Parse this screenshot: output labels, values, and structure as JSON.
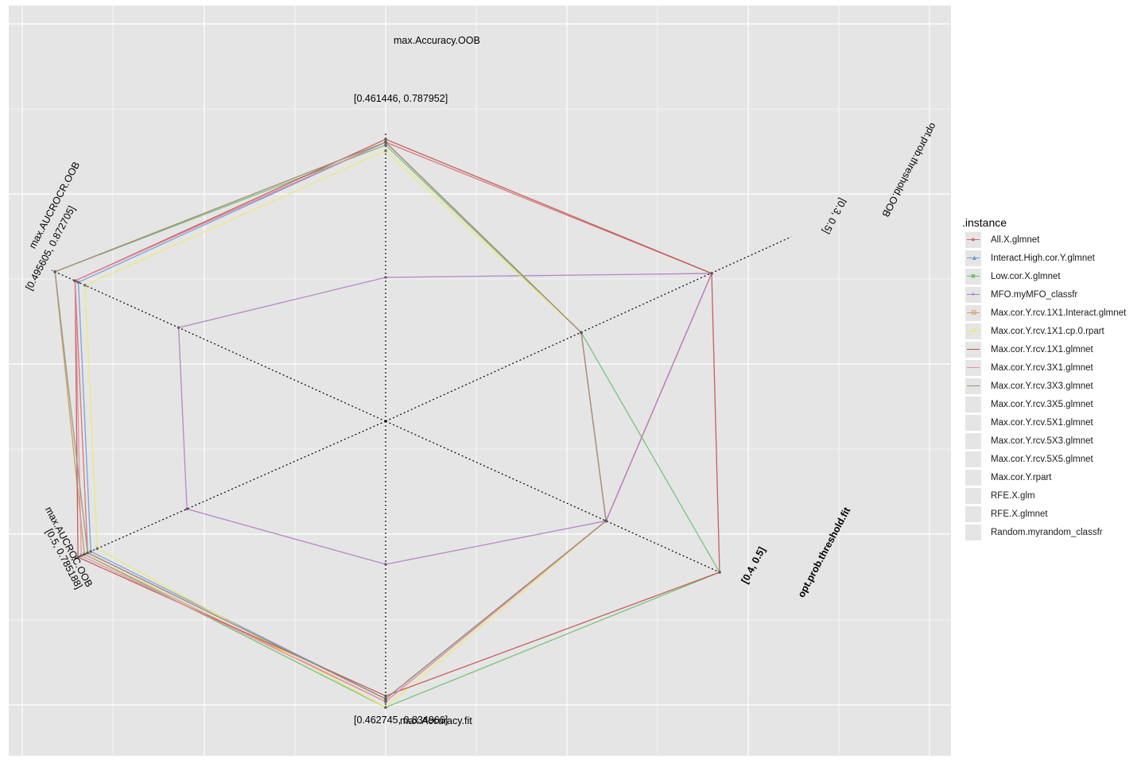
{
  "chart_data": {
    "type": "radar",
    "axes": [
      {
        "name": "max.Accuracy.OOB",
        "range_label": "[0.461446, 0.787952]"
      },
      {
        "name": "opt.prob.threshold.OOB",
        "range_label": "[0.3, 0.5]"
      },
      {
        "name": "opt.prob.threshold.fit",
        "range_label": "[0.4, 0.5]"
      },
      {
        "name": "max.Accuracy.fit",
        "range_label": "[0.462745, 0.834966]"
      },
      {
        "name": "max.AUCROC.OOB",
        "range_label": "[0.5, 0.785188]"
      },
      {
        "name": "max.AUCROCR.OOB",
        "range_label": "[0.495605, 0.872705]"
      }
    ],
    "series": [
      {
        "name": "All.X.glmnet",
        "color": "#d46a6a",
        "marker": "circle",
        "values": [
          0.97,
          1.0,
          0.66,
          0.97,
          0.93,
          0.93
        ]
      },
      {
        "name": "Interact.High.cor.Y.glmnet",
        "color": "#6f9ad4",
        "marker": "triangle",
        "values": [
          0.97,
          0.6,
          0.66,
          0.97,
          0.92,
          0.92
        ]
      },
      {
        "name": "Low.cor.X.glmnet",
        "color": "#6fbf6f",
        "marker": "square",
        "values": [
          0.96,
          0.6,
          1.0,
          1.0,
          0.94,
          0.99
        ]
      },
      {
        "name": "MFO.myMFO_classfr",
        "color": "#b07cc4",
        "marker": "plus",
        "values": [
          0.5,
          1.0,
          0.66,
          0.5,
          0.62,
          0.62
        ]
      },
      {
        "name": "Max.cor.Y.rcv.1X1.Interact.glmnet",
        "color": "#d4a06a",
        "marker": "boxx",
        "values": [
          0.97,
          0.6,
          0.66,
          0.98,
          0.94,
          0.99
        ]
      },
      {
        "name": "Max.cor.Y.rcv.1X1.cp.0.rpart",
        "color": "#eaea70",
        "marker": "star",
        "values": [
          0.94,
          0.6,
          0.66,
          1.0,
          0.9,
          0.9
        ]
      },
      {
        "name": "Max.cor.Y.rcv.1X1.glmnet",
        "color": "#c0504d",
        "marker": "none",
        "values": [
          0.98,
          1.0,
          1.0,
          0.96,
          0.96,
          0.93
        ]
      },
      {
        "name": "Max.cor.Y.rcv.3X1.glmnet",
        "color": "#e48aa0",
        "marker": "none",
        "values": [
          0.97,
          0.6,
          0.66,
          0.98,
          0.95,
          0.93
        ]
      },
      {
        "name": "Max.cor.Y.rcv.3X3.glmnet",
        "color": "#9a8f7a",
        "marker": "none",
        "values": [
          0.97,
          0.6,
          0.66,
          0.97,
          0.93,
          0.99
        ]
      },
      {
        "name": "Max.cor.Y.rcv.3X5.glmnet",
        "color": "#e5e5e5",
        "marker": "none",
        "values": []
      },
      {
        "name": "Max.cor.Y.rcv.5X1.glmnet",
        "color": "#e5e5e5",
        "marker": "none",
        "values": []
      },
      {
        "name": "Max.cor.Y.rcv.5X3.glmnet",
        "color": "#e5e5e5",
        "marker": "none",
        "values": []
      },
      {
        "name": "Max.cor.Y.rcv.5X5.glmnet",
        "color": "#e5e5e5",
        "marker": "none",
        "values": []
      },
      {
        "name": "Max.cor.Y.rpart",
        "color": "#e5e5e5",
        "marker": "none",
        "values": []
      },
      {
        "name": "RFE.X.glm",
        "color": "#e5e5e5",
        "marker": "none",
        "values": []
      },
      {
        "name": "RFE.X.glmnet",
        "color": "#e5e5e5",
        "marker": "none",
        "values": []
      },
      {
        "name": "Random.myrandom_classfr",
        "color": "#e5e5e5",
        "marker": "none",
        "values": []
      }
    ],
    "legend_title": ".instance",
    "legend_position": "right",
    "grid": true,
    "panel_background": "#e5e5e5"
  }
}
